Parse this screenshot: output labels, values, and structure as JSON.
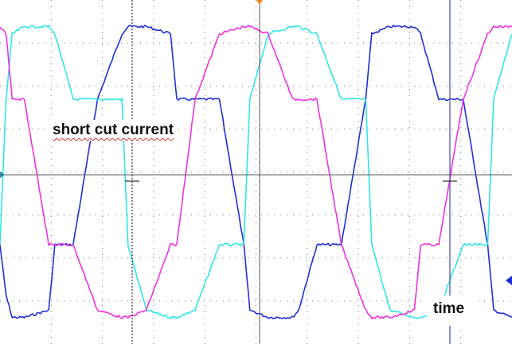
{
  "chart_data": {
    "type": "line",
    "title": "",
    "xlabel": "",
    "ylabel": "",
    "grid": true,
    "divisions": {
      "x": 10,
      "y": 8
    },
    "x": [
      0,
      0.05,
      0.1,
      0.2,
      0.4,
      0.45,
      0.6,
      0.8,
      1.0,
      1.05,
      1.2,
      1.4,
      1.45,
      1.6,
      1.8,
      2.0,
      2.05,
      2.2,
      2.4,
      2.45,
      2.6,
      2.8,
      3.0,
      3.05,
      3.2,
      3.4,
      3.45,
      3.6,
      3.8,
      4.0,
      4.05,
      4.2
    ],
    "ylim": [
      -1.15,
      1.15
    ],
    "series": [
      {
        "color": "#1f2fd8",
        "values": [
          -0.5,
          -0.85,
          -1.0,
          -1.0,
          -0.95,
          -0.5,
          -0.5,
          0.5,
          0.95,
          1.0,
          1.0,
          0.95,
          0.5,
          0.5,
          0.5,
          -0.5,
          -0.95,
          -1.0,
          -1.0,
          -0.95,
          -0.5,
          -0.5,
          0.5,
          0.95,
          1.0,
          1.0,
          0.95,
          0.5,
          0.5,
          -0.5,
          -0.95,
          -1.0
        ]
      },
      {
        "color": "#30e6e6",
        "values": [
          -0.5,
          0.5,
          0.95,
          1.0,
          1.0,
          0.95,
          0.5,
          0.5,
          0.5,
          -0.5,
          -0.95,
          -1.0,
          -1.0,
          -0.95,
          -0.5,
          -0.5,
          0.5,
          0.95,
          1.0,
          1.0,
          0.95,
          0.5,
          0.5,
          -0.5,
          -0.95,
          -1.0,
          -1.0,
          -0.95,
          -0.5,
          -0.5,
          0.5,
          0.95
        ]
      },
      {
        "color": "#ee33dd",
        "values": [
          1.0,
          0.95,
          0.5,
          0.5,
          -0.5,
          -0.5,
          -0.5,
          -0.95,
          -1.0,
          -1.0,
          -0.95,
          -0.5,
          -0.5,
          0.5,
          0.95,
          1.0,
          1.0,
          0.95,
          0.5,
          0.5,
          0.5,
          -0.5,
          -0.95,
          -1.0,
          -1.0,
          -0.95,
          -0.5,
          -0.5,
          0.5,
          0.95,
          1.0,
          1.0
        ]
      }
    ],
    "annotations": [
      "short cut current",
      "time"
    ]
  }
}
